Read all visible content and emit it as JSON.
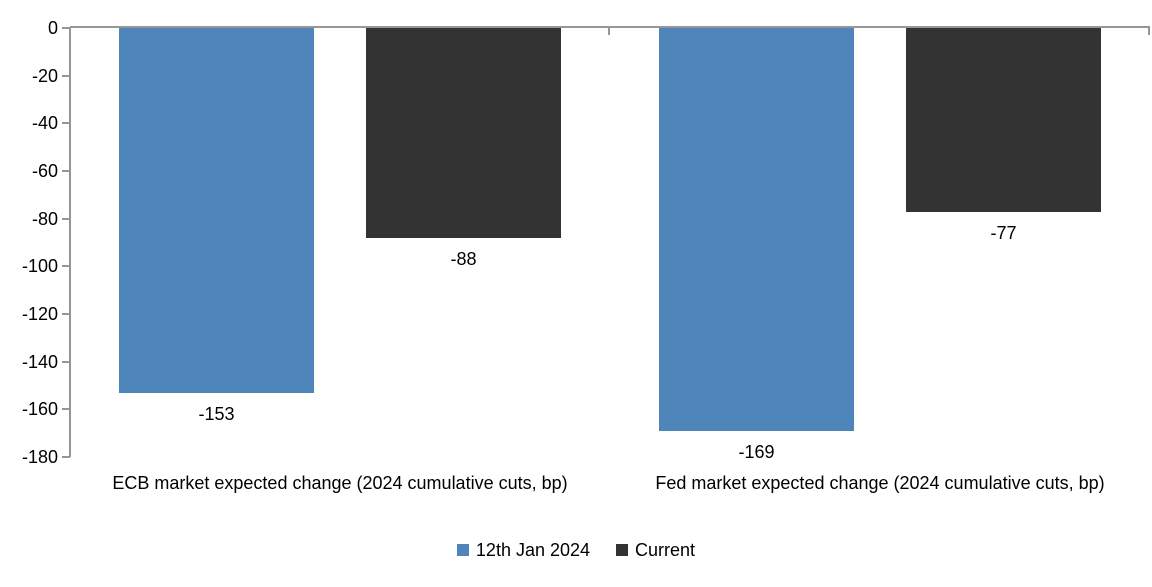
{
  "chart_data": {
    "type": "bar",
    "categories": [
      "ECB market expected change (2024 cumulative cuts, bp)",
      "Fed market expected change (2024 cumulative cuts, bp)"
    ],
    "series": [
      {
        "name": "12th Jan 2024",
        "color": "#4E86BC",
        "values": [
          -153,
          -169
        ]
      },
      {
        "name": "Current",
        "color": "#333333",
        "values": [
          -88,
          -77
        ]
      }
    ],
    "value_labels": [
      [
        "-153",
        "-169"
      ],
      [
        "-88",
        "-77"
      ]
    ],
    "ylim": [
      0,
      -180
    ],
    "ytick_labels": [
      "0",
      "-20",
      "-40",
      "-60",
      "-80",
      "-100",
      "-120",
      "-140",
      "-160",
      "-180"
    ],
    "ytick_step": 20,
    "grid": false,
    "legend_position": "bottom",
    "axis_color": "#969696",
    "text_color": "#000000",
    "background_color": "#FFFFFF"
  }
}
